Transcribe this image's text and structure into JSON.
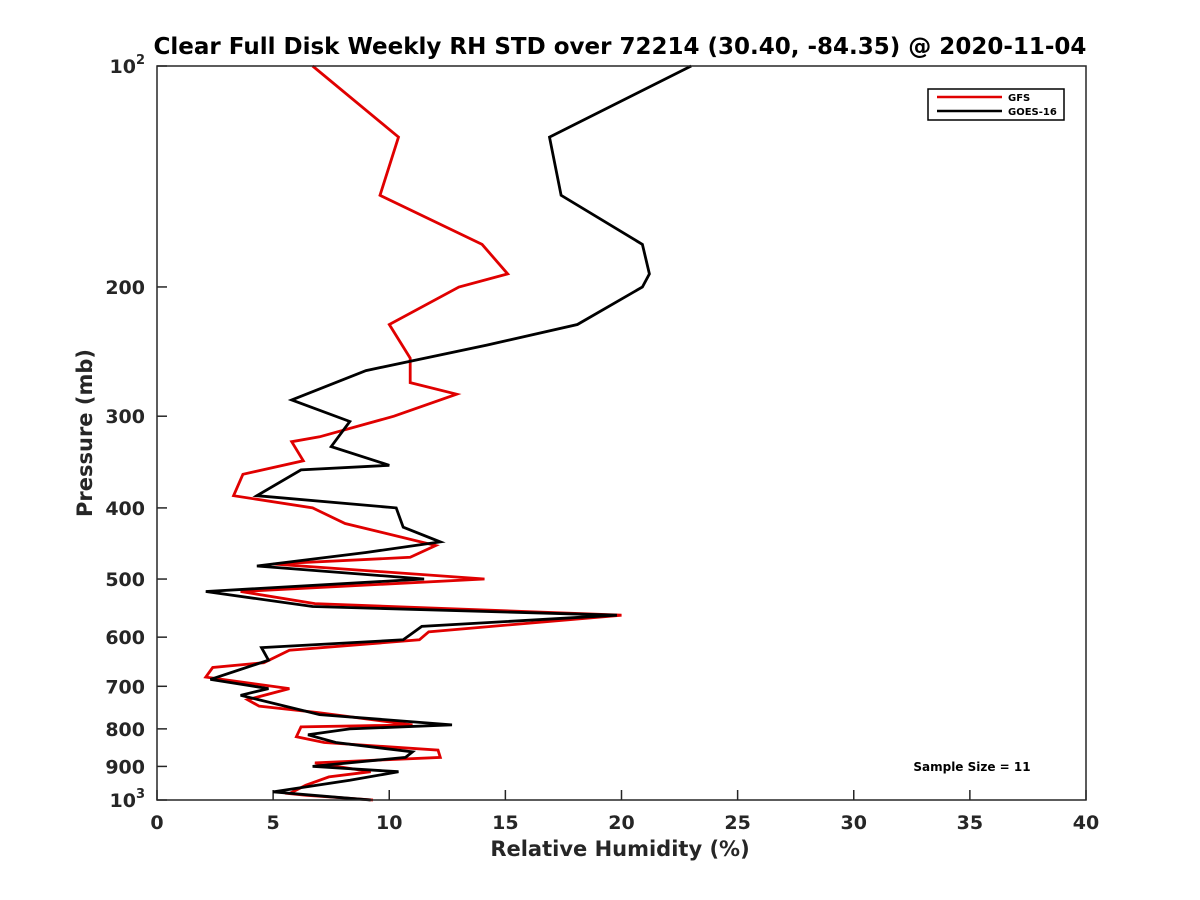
{
  "chart_data": {
    "type": "line",
    "title": "Clear Full Disk Weekly RH STD over 72214 (30.40, -84.35) @ 2020-11-04",
    "xlabel": "Relative Humidity (%)",
    "ylabel": "Pressure (mb)",
    "xlim": [
      0,
      40
    ],
    "ylim": [
      100,
      1000
    ],
    "yscale": "log",
    "y_reversed": true,
    "x_ticks": [
      0,
      5,
      10,
      15,
      20,
      25,
      30,
      35,
      40
    ],
    "x_tick_labels": [
      "0",
      "5",
      "10",
      "15",
      "20",
      "25",
      "30",
      "35",
      "40"
    ],
    "y_ticks": [
      100,
      200,
      300,
      400,
      500,
      600,
      700,
      800,
      900,
      1000
    ],
    "y_tick_labels": [
      {
        "value": 100,
        "base": "10",
        "exp": "2"
      },
      {
        "value": 200,
        "base": "200",
        "exp": ""
      },
      {
        "value": 300,
        "base": "300",
        "exp": ""
      },
      {
        "value": 400,
        "base": "400",
        "exp": ""
      },
      {
        "value": 500,
        "base": "500",
        "exp": ""
      },
      {
        "value": 600,
        "base": "600",
        "exp": ""
      },
      {
        "value": 700,
        "base": "700",
        "exp": ""
      },
      {
        "value": 800,
        "base": "800",
        "exp": ""
      },
      {
        "value": 900,
        "base": "900",
        "exp": ""
      },
      {
        "value": 1000,
        "base": "10",
        "exp": "3"
      }
    ],
    "legend_position": "top-right",
    "annotation": "Sample Size = 11",
    "series": [
      {
        "name": "GFS",
        "color": "#e00000",
        "points": [
          [
            6.7,
            100
          ],
          [
            10.4,
            125
          ],
          [
            9.6,
            150
          ],
          [
            14.0,
            175
          ],
          [
            15.1,
            192
          ],
          [
            13.0,
            200
          ],
          [
            10.0,
            225
          ],
          [
            10.9,
            250
          ],
          [
            10.9,
            270
          ],
          [
            12.9,
            280
          ],
          [
            10.2,
            300
          ],
          [
            7.0,
            320
          ],
          [
            5.8,
            325
          ],
          [
            6.3,
            345
          ],
          [
            3.7,
            360
          ],
          [
            3.3,
            385
          ],
          [
            6.7,
            400
          ],
          [
            8.1,
            420
          ],
          [
            12.0,
            450
          ],
          [
            10.9,
            467
          ],
          [
            5.0,
            477
          ],
          [
            14.1,
            500
          ],
          [
            3.6,
            520
          ],
          [
            6.8,
            540
          ],
          [
            20.0,
            560
          ],
          [
            11.7,
            590
          ],
          [
            11.3,
            605
          ],
          [
            5.7,
            625
          ],
          [
            4.6,
            650
          ],
          [
            2.4,
            660
          ],
          [
            2.1,
            680
          ],
          [
            5.7,
            705
          ],
          [
            3.9,
            730
          ],
          [
            4.4,
            745
          ],
          [
            6.9,
            760
          ],
          [
            11.0,
            790
          ],
          [
            6.2,
            795
          ],
          [
            6.0,
            820
          ],
          [
            7.2,
            835
          ],
          [
            12.1,
            855
          ],
          [
            12.2,
            875
          ],
          [
            6.8,
            890
          ],
          [
            9.2,
            915
          ],
          [
            7.4,
            930
          ],
          [
            6.4,
            955
          ],
          [
            5.7,
            980
          ],
          [
            6.4,
            985
          ],
          [
            9.3,
            1000
          ]
        ]
      },
      {
        "name": "GOES-16",
        "color": "#000000",
        "points": [
          [
            23.0,
            100
          ],
          [
            16.9,
            125
          ],
          [
            17.4,
            150
          ],
          [
            20.9,
            175
          ],
          [
            21.2,
            192
          ],
          [
            20.9,
            200
          ],
          [
            18.1,
            225
          ],
          [
            14.2,
            240
          ],
          [
            9.0,
            260
          ],
          [
            5.8,
            285
          ],
          [
            8.3,
            305
          ],
          [
            7.5,
            330
          ],
          [
            10.0,
            350
          ],
          [
            6.2,
            355
          ],
          [
            4.3,
            385
          ],
          [
            10.3,
            400
          ],
          [
            10.6,
            425
          ],
          [
            12.2,
            445
          ],
          [
            9.0,
            460
          ],
          [
            4.3,
            480
          ],
          [
            11.5,
            500
          ],
          [
            2.1,
            520
          ],
          [
            6.7,
            545
          ],
          [
            19.8,
            560
          ],
          [
            11.4,
            580
          ],
          [
            10.6,
            605
          ],
          [
            4.5,
            620
          ],
          [
            4.8,
            645
          ],
          [
            2.3,
            685
          ],
          [
            4.8,
            705
          ],
          [
            3.6,
            720
          ],
          [
            7.0,
            765
          ],
          [
            12.7,
            790
          ],
          [
            8.3,
            800
          ],
          [
            6.5,
            815
          ],
          [
            7.7,
            835
          ],
          [
            11.0,
            860
          ],
          [
            10.7,
            875
          ],
          [
            6.7,
            900
          ],
          [
            10.4,
            915
          ],
          [
            8.3,
            940
          ],
          [
            5.0,
            975
          ],
          [
            7.5,
            990
          ],
          [
            9.2,
            1000
          ]
        ]
      }
    ]
  }
}
